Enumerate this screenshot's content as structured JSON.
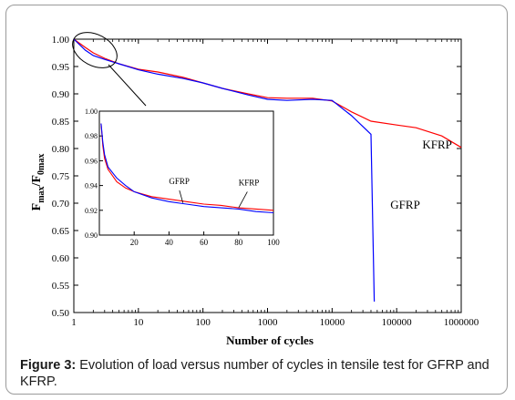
{
  "caption": {
    "label": "Figure 3:",
    "text": " Evolution of load versus number of cycles in tensile test for GFRP and KFRP."
  },
  "colors": {
    "KFRP": "#ff0000",
    "GFRP": "#0000ff",
    "axes": "#000000"
  },
  "chart_data": [
    {
      "type": "line",
      "xscale": "log",
      "xlabel": "Number of cycles",
      "ylabel": "F_max/F_0max",
      "xlim": [
        1,
        1000000
      ],
      "ylim": [
        0.5,
        1.0
      ],
      "xticks": [
        1,
        10,
        100,
        1000,
        10000,
        100000,
        1000000
      ],
      "xtick_labels": [
        "1",
        "10",
        "100",
        "1000",
        "10000",
        "100000",
        "1000000"
      ],
      "yticks": [
        0.5,
        0.55,
        0.6,
        0.65,
        0.7,
        0.75,
        0.8,
        0.85,
        0.9,
        0.95,
        1.0
      ],
      "ytick_labels": [
        "0.50",
        "0.55",
        "0.60",
        "0.65",
        "0.70",
        "0.75",
        "0.80",
        "0.85",
        "0.90",
        "0.95",
        "1.00"
      ],
      "grid": false,
      "series": [
        {
          "name": "KFRP",
          "color": "#ff0000",
          "x": [
            1,
            1.5,
            2,
            3,
            5,
            10,
            20,
            50,
            100,
            200,
            500,
            1000,
            2000,
            5000,
            10000,
            20000,
            40000,
            100000,
            200000,
            500000,
            1000000
          ],
          "y": [
            1.0,
            0.985,
            0.975,
            0.965,
            0.955,
            0.945,
            0.94,
            0.93,
            0.92,
            0.91,
            0.9,
            0.893,
            0.892,
            0.892,
            0.887,
            0.867,
            0.85,
            0.843,
            0.838,
            0.823,
            0.802
          ]
        },
        {
          "name": "GFRP",
          "color": "#0000ff",
          "x": [
            1,
            1.5,
            2,
            3,
            5,
            10,
            20,
            50,
            100,
            200,
            500,
            1000,
            2000,
            5000,
            10000,
            20000,
            40000,
            45000
          ],
          "y": [
            1.0,
            0.98,
            0.97,
            0.963,
            0.955,
            0.944,
            0.936,
            0.928,
            0.92,
            0.91,
            0.898,
            0.89,
            0.888,
            0.89,
            0.888,
            0.86,
            0.826,
            0.52
          ]
        }
      ],
      "annotations": [
        {
          "text": "KFRP",
          "x": 250000,
          "y": 0.8
        },
        {
          "text": "GFRP",
          "x": 80000,
          "y": 0.69
        }
      ]
    },
    {
      "type": "line",
      "xlim": [
        0,
        100
      ],
      "ylim": [
        0.9,
        1.0
      ],
      "xticks": [
        20,
        40,
        60,
        80,
        100
      ],
      "xtick_labels": [
        "20",
        "40",
        "60",
        "80",
        "100"
      ],
      "yticks": [
        0.9,
        0.92,
        0.94,
        0.96,
        0.98,
        1.0
      ],
      "ytick_labels": [
        "0.90",
        "0.92",
        "0.94",
        "0.96",
        "0.98",
        "1.00"
      ],
      "grid": false,
      "series": [
        {
          "name": "KFRP",
          "color": "#ff0000",
          "x": [
            1,
            2,
            3,
            5,
            10,
            15,
            20,
            30,
            40,
            50,
            60,
            70,
            80,
            90,
            100
          ],
          "y": [
            0.99,
            0.972,
            0.962,
            0.953,
            0.943,
            0.938,
            0.935,
            0.931,
            0.929,
            0.927,
            0.925,
            0.924,
            0.922,
            0.921,
            0.92
          ]
        },
        {
          "name": "GFRP",
          "color": "#0000ff",
          "x": [
            1,
            2,
            3,
            5,
            10,
            15,
            20,
            30,
            40,
            50,
            60,
            70,
            80,
            90,
            100
          ],
          "y": [
            0.99,
            0.975,
            0.965,
            0.955,
            0.946,
            0.94,
            0.935,
            0.93,
            0.927,
            0.925,
            0.923,
            0.922,
            0.921,
            0.919,
            0.918
          ]
        }
      ],
      "annotations": [
        {
          "text": "GFRP",
          "x": 40,
          "y": 0.941
        },
        {
          "text": "KFRP",
          "x": 80,
          "y": 0.94
        }
      ]
    }
  ]
}
